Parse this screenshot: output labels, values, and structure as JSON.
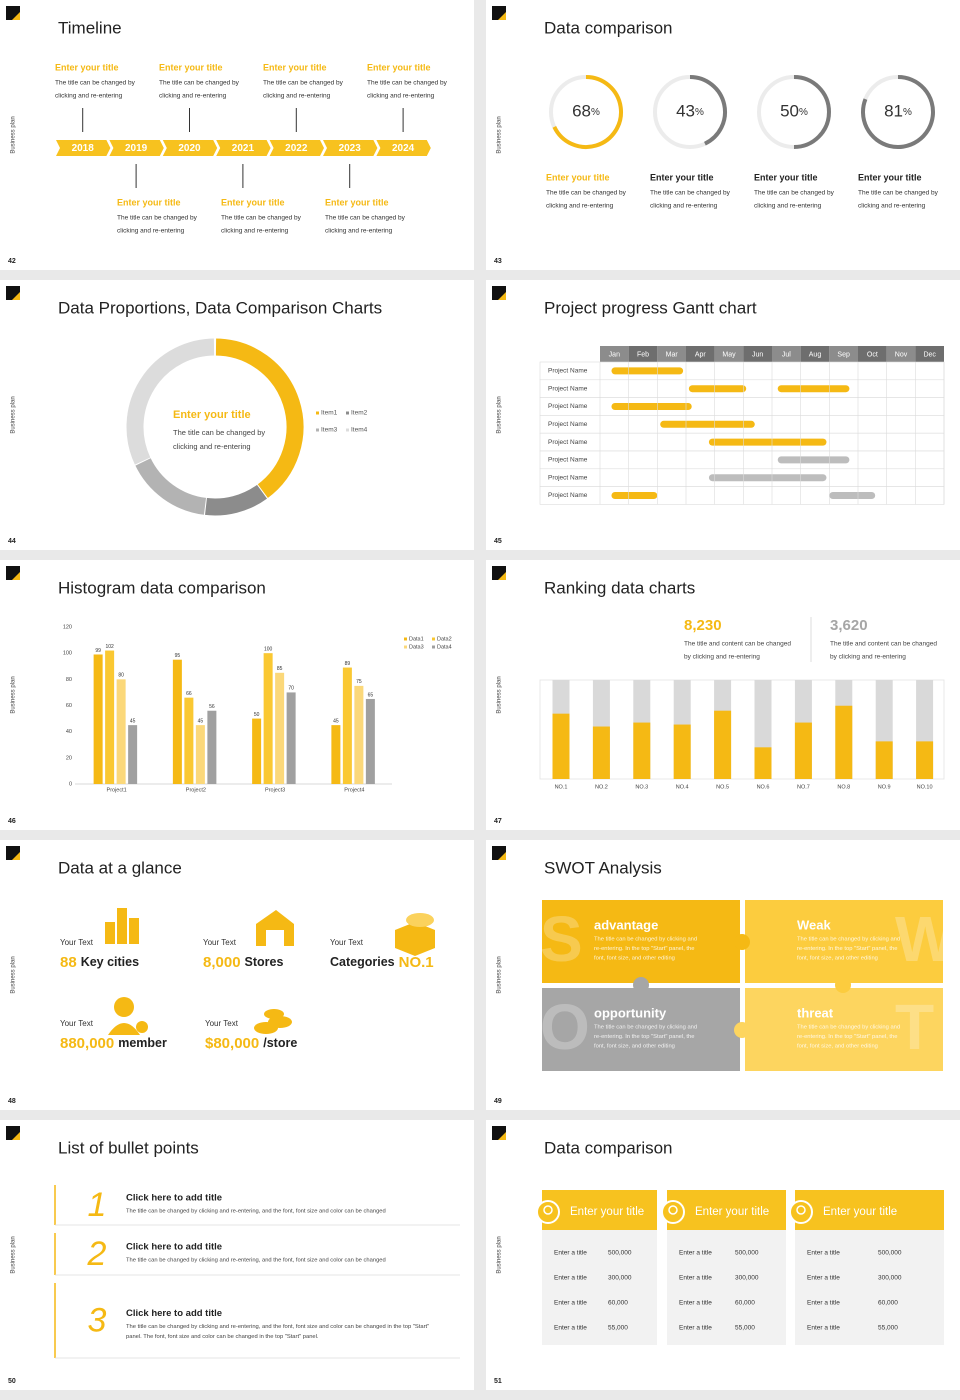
{
  "slides": [
    {
      "title": "Timeline",
      "page": 42,
      "side": "Business plan",
      "years": [
        "2018",
        "2019",
        "2020",
        "2021",
        "2022",
        "2023",
        "2024"
      ],
      "top_entries": [
        {
          "title": "Enter your title",
          "text": [
            "The title can be changed by",
            "clicking and re-entering"
          ]
        },
        {
          "title": "Enter your title",
          "text": [
            "The title can be changed by",
            "clicking and re-entering"
          ]
        },
        {
          "title": "Enter your title",
          "text": [
            "The title can be changed by",
            "clicking and re-entering"
          ]
        },
        {
          "title": "Enter your title",
          "text": [
            "The title can be changed by",
            "clicking and re-entering"
          ]
        }
      ],
      "bottom_entries": [
        {
          "title": "Enter your title",
          "text": [
            "The title can be changed by",
            "clicking and re-entering"
          ]
        },
        {
          "title": "Enter your title",
          "text": [
            "The title can be changed by",
            "clicking and re-entering"
          ]
        },
        {
          "title": "Enter your title",
          "text": [
            "The title can be changed by",
            "clicking and re-entering"
          ]
        }
      ]
    },
    {
      "title": "Data comparison",
      "page": 43,
      "side": "Business plan",
      "donuts": [
        {
          "value": 68,
          "unit": "%",
          "title": "Enter your title",
          "text": [
            "The title can be changed by",
            "clicking and re-entering"
          ],
          "color": "#f5b914"
        },
        {
          "value": 43,
          "unit": "%",
          "title": "Enter your title",
          "text": [
            "The title can be changed by",
            "clicking and re-entering"
          ],
          "color": "#7a7a7a"
        },
        {
          "value": 50,
          "unit": "%",
          "title": "Enter your title",
          "text": [
            "The title can be changed by",
            "clicking and re-entering"
          ],
          "color": "#7a7a7a"
        },
        {
          "value": 81,
          "unit": "%",
          "title": "Enter your title",
          "text": [
            "The title can be changed by",
            "clicking and re-entering"
          ],
          "color": "#7a7a7a"
        }
      ]
    },
    {
      "title": "Data Proportions, Data Comparison Charts",
      "page": 44,
      "side": "Business plan",
      "center_title": "Enter your title",
      "center_text": [
        "The title can be changed by",
        "clicking and re-entering"
      ],
      "items": [
        {
          "name": "Item1",
          "value": 40,
          "color": "#f5b914"
        },
        {
          "name": "Item2",
          "value": 12,
          "color": "#8c8c8c"
        },
        {
          "name": "Item3",
          "value": 16,
          "color": "#b3b3b3"
        },
        {
          "name": "Item4",
          "value": 32,
          "color": "#dcdcdc"
        }
      ]
    },
    {
      "title": "Project progress Gantt chart",
      "page": 45,
      "side": "Business plan",
      "months": [
        "Jan",
        "Feb",
        "Mar",
        "Apr",
        "May",
        "Jun",
        "Jul",
        "Aug",
        "Sep",
        "Oct",
        "Nov",
        "Dec"
      ],
      "xlim": [
        0,
        12
      ],
      "rows": [
        {
          "name": "Project Name",
          "bars": [
            {
              "start": 0.4,
              "end": 2.9,
              "color": "#f5b914"
            }
          ]
        },
        {
          "name": "Project Name",
          "bars": [
            {
              "start": 3.1,
              "end": 5.1,
              "color": "#f5b914"
            },
            {
              "start": 6.2,
              "end": 8.7,
              "color": "#f5b914"
            }
          ]
        },
        {
          "name": "Project Name",
          "bars": [
            {
              "start": 0.4,
              "end": 3.2,
              "color": "#f5b914"
            }
          ]
        },
        {
          "name": "Project Name",
          "bars": [
            {
              "start": 2.1,
              "end": 5.4,
              "color": "#f5b914"
            }
          ]
        },
        {
          "name": "Project Name",
          "bars": [
            {
              "start": 3.8,
              "end": 7.9,
              "color": "#f5b914"
            }
          ]
        },
        {
          "name": "Project Name",
          "bars": [
            {
              "start": 6.2,
              "end": 8.7,
              "color": "#bdbdbd"
            }
          ]
        },
        {
          "name": "Project Name",
          "bars": [
            {
              "start": 3.8,
              "end": 7.9,
              "color": "#bdbdbd"
            }
          ]
        },
        {
          "name": "Project Name",
          "bars": [
            {
              "start": 0.4,
              "end": 2.0,
              "color": "#f5b914"
            },
            {
              "start": 8.0,
              "end": 9.6,
              "color": "#bdbdbd"
            }
          ]
        }
      ]
    },
    {
      "title": "Histogram data comparison",
      "page": 46,
      "side": "Business plan",
      "categories": [
        "Project1",
        "Project2",
        "Project3",
        "Project4"
      ],
      "ylim": [
        0,
        120
      ],
      "yticks": [
        0,
        20,
        40,
        60,
        80,
        100,
        120
      ],
      "series": [
        {
          "name": "Data1",
          "color": "#f5b914",
          "values": [
            99,
            95,
            50,
            45
          ]
        },
        {
          "name": "Data2",
          "color": "#fac832",
          "values": [
            102,
            66,
            100,
            89
          ]
        },
        {
          "name": "Data3",
          "color": "#fbd87a",
          "values": [
            80,
            45,
            85,
            75
          ]
        },
        {
          "name": "Data4",
          "color": "#a0a0a0",
          "values": [
            45,
            56,
            70,
            65
          ]
        }
      ]
    },
    {
      "title": "Ranking data charts",
      "page": 47,
      "side": "Business plan",
      "stats": [
        {
          "value": "8,230",
          "text": [
            "The title and content can be changed",
            "by clicking and re-entering"
          ],
          "color": "#f5b914"
        },
        {
          "value": "3,620",
          "text": [
            "The title and content can be changed",
            "by clicking and re-entering"
          ],
          "color": "#a6a6a6"
        }
      ],
      "categories": [
        "NO.1",
        "NO.2",
        "NO.3",
        "NO.4",
        "NO.5",
        "NO.6",
        "NO.7",
        "NO.8",
        "NO.9",
        "NO.10"
      ],
      "ylim": [
        0,
        100
      ],
      "values": [
        66,
        53,
        57,
        55,
        69,
        32,
        57,
        74,
        38,
        38
      ],
      "color": "#f5b914",
      "track_color": "#d9d9d9"
    },
    {
      "title": "Data at a glance",
      "page": 48,
      "side": "Business plan",
      "items": [
        {
          "label": "Your Text",
          "parts": [
            {
              "text": "88",
              "accent": true
            },
            {
              "text": "Key cities",
              "accent": false
            }
          ]
        },
        {
          "label": "Your Text",
          "parts": [
            {
              "text": "8,000",
              "accent": true
            },
            {
              "text": "Stores",
              "accent": false
            }
          ]
        },
        {
          "label": "Your Text",
          "parts": [
            {
              "text": "Categories",
              "accent": false
            },
            {
              "text": "NO.1",
              "accent": true
            }
          ]
        },
        {
          "label": "Your Text",
          "parts": [
            {
              "text": "880,000",
              "accent": true
            },
            {
              "text": "member",
              "accent": false
            }
          ]
        },
        {
          "label": "Your Text",
          "parts": [
            {
              "text": "$80,000",
              "accent": true
            },
            {
              "text": "/store",
              "accent": false
            }
          ]
        }
      ]
    },
    {
      "title": "SWOT Analysis",
      "page": 49,
      "side": "Business plan",
      "blocks": [
        {
          "letter": "S",
          "title": "advantage",
          "color": "#f5b914",
          "text": [
            "The title can be changed by clicking and",
            "re-entering. In the top \"Start\" panel, the",
            "font, font size, and other editing"
          ]
        },
        {
          "letter": "W",
          "title": "Weak",
          "color": "#fccc3e",
          "text": [
            "The title can be changed by clicking and",
            "re-entering. In the top \"Start\" panel, the",
            "font, font size, and other editing"
          ]
        },
        {
          "letter": "O",
          "title": "opportunity",
          "color": "#a6a6a6",
          "text": [
            "The title can be changed by clicking and",
            "re-entering. In the top \"Start\" panel, the",
            "font, font size, and other editing"
          ]
        },
        {
          "letter": "T",
          "title": "threat",
          "color": "#fdd55f",
          "text": [
            "The title can be changed by clicking and",
            "re-entering. In the top \"Start\" panel, the",
            "font, font size, and other editing"
          ]
        }
      ]
    },
    {
      "title": "List of bullet points",
      "page": 50,
      "side": "Business plan",
      "bullets": [
        {
          "number": "1",
          "title": "Click here to add title",
          "text": [
            "The title can be changed by clicking and re-entering, and the font, font size and color can be changed"
          ]
        },
        {
          "number": "2",
          "title": "Click here to add title",
          "text": [
            "The title can be changed by clicking and re-entering, and the font, font size and color can be changed"
          ]
        },
        {
          "number": "3",
          "title": "Click here to add title",
          "text": [
            "The title can be changed by clicking and re-entering, and the font, font size and color can be changed in the top \"Start\"",
            "panel. The font, font size and color can be changed in the top \"Start\" panel."
          ]
        }
      ]
    },
    {
      "title": "Data comparison",
      "page": 51,
      "side": "Business plan",
      "cards": [
        {
          "title": "Enter your title",
          "rows": [
            [
              "Enter a title",
              "500,000"
            ],
            [
              "Enter a title",
              "300,000"
            ],
            [
              "Enter a title",
              "60,000"
            ],
            [
              "Enter a title",
              "55,000"
            ]
          ]
        },
        {
          "title": "Enter your title",
          "rows": [
            [
              "Enter a title",
              "500,000"
            ],
            [
              "Enter a title",
              "300,000"
            ],
            [
              "Enter a title",
              "60,000"
            ],
            [
              "Enter a title",
              "55,000"
            ]
          ]
        },
        {
          "title": "Enter your title",
          "rows": [
            [
              "Enter a title",
              "500,000"
            ],
            [
              "Enter a title",
              "300,000"
            ],
            [
              "Enter a title",
              "60,000"
            ],
            [
              "Enter a title",
              "55,000"
            ]
          ]
        }
      ]
    }
  ]
}
